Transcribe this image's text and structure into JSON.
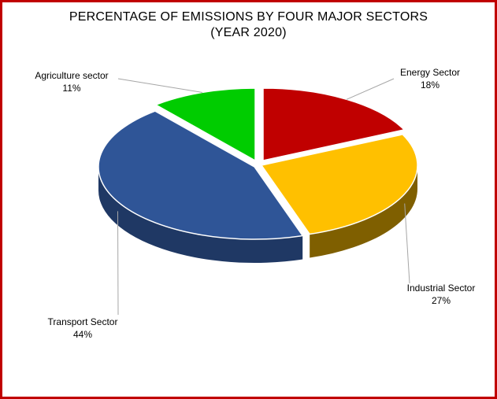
{
  "chart_data": {
    "type": "pie",
    "title_line1": "PERCENTAGE OF EMISSIONS BY FOUR MAJOR SECTORS",
    "title_line2": "(YEAR 2020)",
    "slices": [
      {
        "label": "Energy Sector",
        "value": 18,
        "value_label": "18%",
        "color": "#c00000",
        "side_color": "#7a0000"
      },
      {
        "label": "Industrial Sector",
        "value": 27,
        "value_label": "27%",
        "color": "#ffc000",
        "side_color": "#7f5f00"
      },
      {
        "label": "Transport Sector",
        "value": 44,
        "value_label": "44%",
        "color": "#2f5597",
        "side_color": "#1f3864"
      },
      {
        "label": "Agriculture sector",
        "value": 11,
        "value_label": "11%",
        "color": "#00cc00",
        "side_color": "#006600"
      }
    ],
    "style": "3d-exploded"
  },
  "colors": {
    "border": "#c00000",
    "leader": "#a6a6a6"
  }
}
